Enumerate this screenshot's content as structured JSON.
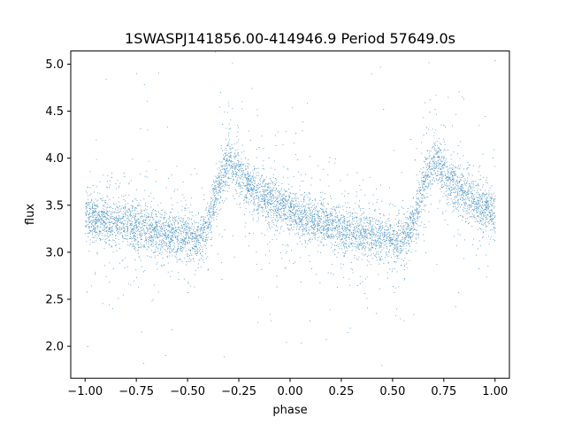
{
  "chart_data": {
    "type": "scatter",
    "title": "1SWASPJ141856.00-414946.9 Period 57649.0s",
    "xlabel": "phase",
    "ylabel": "flux",
    "xlim": [
      -1.07,
      1.07
    ],
    "ylim": [
      1.66,
      5.14
    ],
    "xticks": [
      -1.0,
      -0.75,
      -0.5,
      -0.25,
      0.0,
      0.25,
      0.5,
      0.75,
      1.0
    ],
    "xtick_labels": [
      "−1.00",
      "−0.75",
      "−0.50",
      "−0.25",
      "0.00",
      "0.25",
      "0.50",
      "0.75",
      "1.00"
    ],
    "yticks": [
      2.0,
      2.5,
      3.0,
      3.5,
      4.0,
      4.5,
      5.0
    ],
    "ytick_labels": [
      "2.0",
      "2.5",
      "3.0",
      "3.5",
      "4.0",
      "4.5",
      "5.0"
    ],
    "grid": false,
    "marker_color": "#1f77b4",
    "profile": {
      "x": [
        -1.0,
        -0.9,
        -0.8,
        -0.7,
        -0.6,
        -0.5,
        -0.45,
        -0.4,
        -0.35,
        -0.3,
        -0.25,
        -0.2,
        -0.1,
        0.0,
        0.1,
        0.2,
        0.3,
        0.4,
        0.5,
        0.55,
        0.6,
        0.65,
        0.7,
        0.75,
        0.8,
        0.9,
        1.0
      ],
      "y": [
        3.38,
        3.34,
        3.3,
        3.25,
        3.2,
        3.15,
        3.12,
        3.3,
        3.75,
        3.97,
        3.82,
        3.7,
        3.55,
        3.42,
        3.33,
        3.28,
        3.22,
        3.18,
        3.12,
        3.1,
        3.28,
        3.72,
        3.97,
        3.85,
        3.7,
        3.55,
        3.42
      ]
    }
  }
}
